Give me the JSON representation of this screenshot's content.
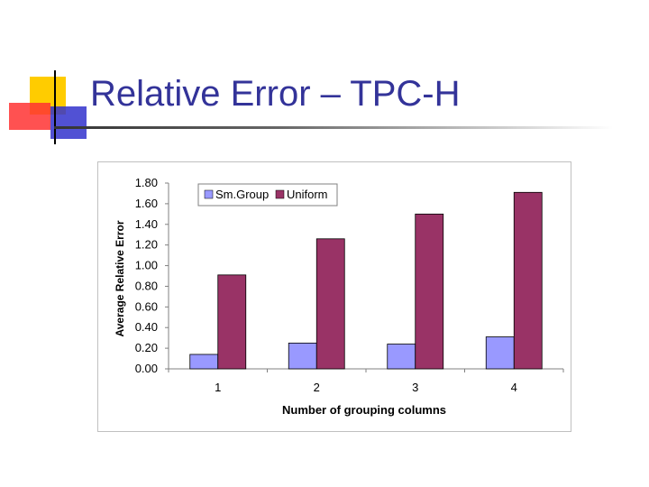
{
  "slide": {
    "title": "Relative Error – TPC-H"
  },
  "colors": {
    "title": "#333399",
    "smgroup": "#9999ff",
    "uniform": "#993366",
    "deco_yellow": "#ffcc00",
    "deco_red": "#ff3333",
    "deco_blue": "#3333cc"
  },
  "chart_data": {
    "type": "bar",
    "categories": [
      "1",
      "2",
      "3",
      "4"
    ],
    "series": [
      {
        "name": "Sm.Group",
        "values": [
          0.14,
          0.25,
          0.24,
          0.31
        ]
      },
      {
        "name": "Uniform",
        "values": [
          0.91,
          1.26,
          1.5,
          1.71
        ]
      }
    ],
    "title": "",
    "xlabel": "Number of  grouping columns",
    "ylabel": "Average Relative Error",
    "ylim": [
      0,
      1.8
    ],
    "yticks": [
      "0.00",
      "0.20",
      "0.40",
      "0.60",
      "0.80",
      "1.00",
      "1.20",
      "1.40",
      "1.60",
      "1.80"
    ],
    "grid": false,
    "legend": "top"
  }
}
